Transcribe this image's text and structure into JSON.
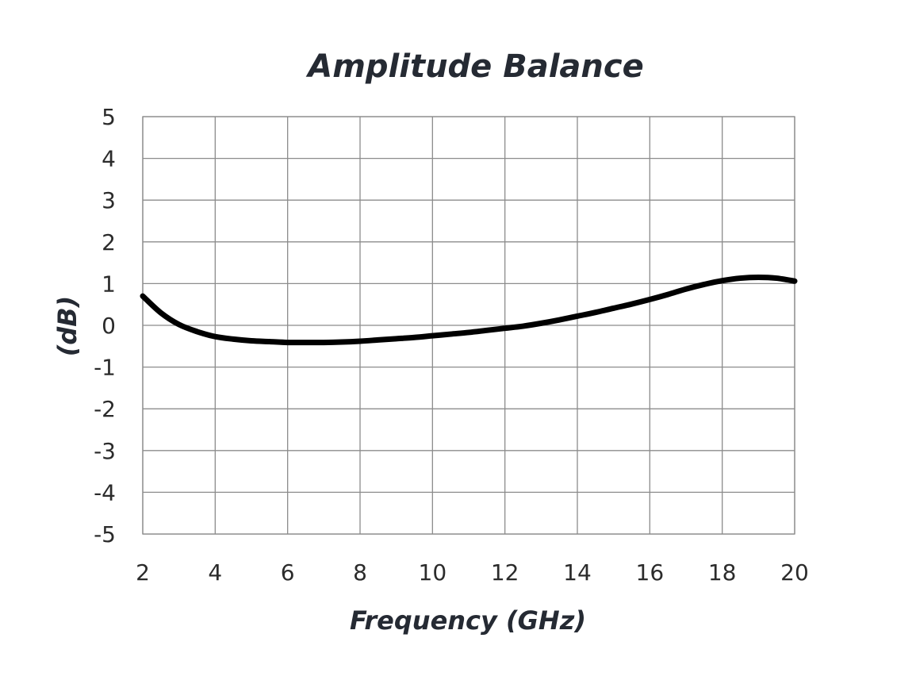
{
  "chart_data": {
    "type": "line",
    "title": "Amplitude Balance",
    "xlabel": "Frequency (GHz)",
    "ylabel": "(dB)",
    "xlim": [
      2,
      20
    ],
    "ylim": [
      -5,
      5
    ],
    "xticks": [
      2,
      4,
      6,
      8,
      10,
      12,
      14,
      16,
      18,
      20
    ],
    "yticks": [
      5,
      4,
      3,
      2,
      1,
      0,
      -1,
      -2,
      -3,
      -4,
      -5
    ],
    "grid": true,
    "legend": "none",
    "line_color": "#000000",
    "series": [
      {
        "x": [
          2,
          2.5,
          3,
          3.5,
          4,
          4.5,
          5,
          5.5,
          6,
          6.5,
          7,
          7.5,
          8,
          8.5,
          9,
          9.5,
          10,
          10.5,
          11,
          11.5,
          12,
          12.5,
          13,
          13.5,
          14,
          14.5,
          15,
          15.5,
          16,
          16.5,
          17,
          17.5,
          18,
          18.5,
          19,
          19.5,
          20
        ],
        "values": [
          0.7,
          0.3,
          0.02,
          -0.15,
          -0.27,
          -0.33,
          -0.37,
          -0.39,
          -0.41,
          -0.41,
          -0.41,
          -0.4,
          -0.38,
          -0.35,
          -0.32,
          -0.29,
          -0.25,
          -0.21,
          -0.17,
          -0.12,
          -0.07,
          -0.02,
          0.05,
          0.13,
          0.22,
          0.31,
          0.41,
          0.51,
          0.62,
          0.74,
          0.87,
          0.98,
          1.07,
          1.13,
          1.15,
          1.13,
          1.06
        ]
      }
    ]
  }
}
